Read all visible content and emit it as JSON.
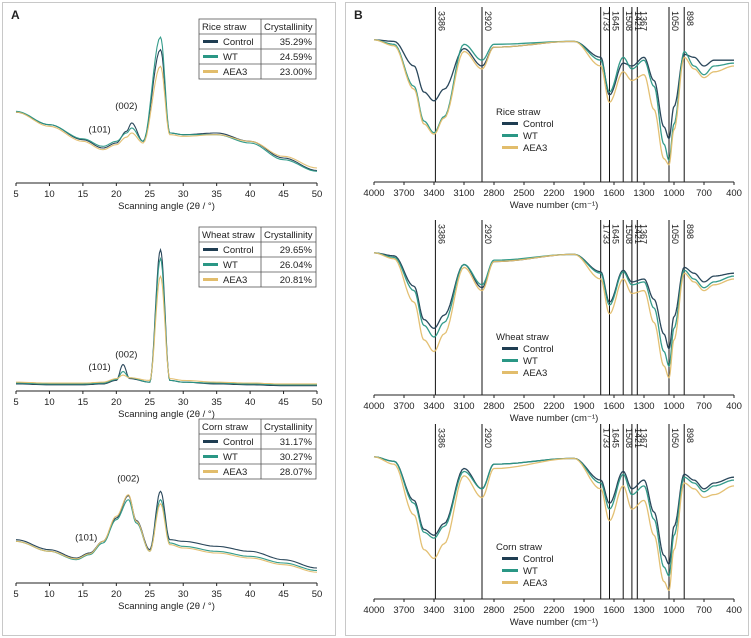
{
  "panels": [
    {
      "letter": "A",
      "type": "xrd"
    },
    {
      "letter": "B",
      "type": "ftir"
    }
  ],
  "colors": {
    "Control": "#1f3d52",
    "WT": "#2a9785",
    "AEA3": "#e2bd6c"
  },
  "xrd": {
    "xlabel": "Scanning angle (2θ / °)",
    "xticks": [
      5,
      10,
      15,
      20,
      25,
      30,
      35,
      40,
      45,
      50
    ],
    "xlim": [
      5,
      50
    ],
    "table_header": "Crystallinity",
    "peak_labels": [
      "(101)",
      "(002)"
    ],
    "charts": [
      {
        "name": "Rice straw",
        "legend": [
          {
            "series": "Control",
            "value": "35.29%"
          },
          {
            "series": "WT",
            "value": "24.59%"
          },
          {
            "series": "AEA3",
            "value": "23.00%"
          }
        ]
      },
      {
        "name": "Wheat straw",
        "legend": [
          {
            "series": "Control",
            "value": "29.65%"
          },
          {
            "series": "WT",
            "value": "26.04%"
          },
          {
            "series": "AEA3",
            "value": "20.81%"
          }
        ]
      },
      {
        "name": "Corn straw",
        "legend": [
          {
            "series": "Control",
            "value": "31.17%"
          },
          {
            "series": "WT",
            "value": "30.27%"
          },
          {
            "series": "AEA3",
            "value": "28.07%"
          }
        ]
      }
    ]
  },
  "ftir": {
    "xlabel": "Wave number (cm⁻¹)",
    "xticks": [
      4000,
      3700,
      3400,
      3100,
      2800,
      2500,
      2200,
      1900,
      1600,
      1300,
      1000,
      700,
      400
    ],
    "xlim": [
      4000,
      400
    ],
    "marker_lines": [
      "3386",
      "2920",
      "1733",
      "1645",
      "1508",
      "1421",
      "1367",
      "1050",
      "898"
    ],
    "charts": [
      {
        "name": "Rice straw",
        "series": [
          "Control",
          "WT",
          "AEA3"
        ]
      },
      {
        "name": "Wheat straw",
        "series": [
          "Control",
          "WT",
          "AEA3"
        ]
      },
      {
        "name": "Corn straw",
        "series": [
          "Control",
          "WT",
          "AEA3"
        ]
      }
    ]
  },
  "chart_data": [
    {
      "type": "line",
      "title": "Rice straw",
      "xlabel": "Scanning angle (2θ / °)",
      "ylabel": "",
      "xlim": [
        5,
        50
      ],
      "series": [
        {
          "name": "Control",
          "x": [
            5,
            10,
            15,
            18,
            20,
            21.5,
            22.3,
            24,
            26.6,
            28,
            30,
            35,
            40,
            45,
            50
          ],
          "y": [
            0.85,
            0.7,
            0.52,
            0.42,
            0.48,
            0.62,
            0.72,
            0.5,
            1.6,
            0.6,
            0.58,
            0.6,
            0.5,
            0.3,
            0.15
          ]
        },
        {
          "name": "WT",
          "x": [
            5,
            10,
            15,
            18,
            20,
            21.5,
            22.3,
            24,
            26.6,
            28,
            30,
            35,
            40,
            45,
            50
          ],
          "y": [
            0.86,
            0.7,
            0.53,
            0.44,
            0.5,
            0.6,
            0.66,
            0.5,
            1.75,
            0.6,
            0.58,
            0.58,
            0.48,
            0.28,
            0.14
          ]
        },
        {
          "name": "AEA3",
          "x": [
            5,
            10,
            15,
            18,
            20,
            21.5,
            22.3,
            24,
            26.6,
            28,
            30,
            35,
            40,
            45,
            50
          ],
          "y": [
            0.85,
            0.68,
            0.5,
            0.4,
            0.46,
            0.55,
            0.6,
            0.48,
            1.4,
            0.58,
            0.56,
            0.58,
            0.5,
            0.32,
            0.18
          ]
        }
      ]
    },
    {
      "type": "line",
      "title": "Wheat straw",
      "xlabel": "Scanning angle (2θ / °)",
      "ylabel": "",
      "xlim": [
        5,
        50
      ],
      "series": [
        {
          "name": "Control",
          "x": [
            5,
            10,
            15,
            18,
            20,
            21,
            22,
            25,
            26.6,
            28,
            30,
            35,
            40,
            45,
            50
          ],
          "y": [
            0.08,
            0.07,
            0.07,
            0.08,
            0.12,
            0.3,
            0.14,
            0.1,
            1.6,
            0.12,
            0.1,
            0.08,
            0.07,
            0.06,
            0.06
          ]
        },
        {
          "name": "WT",
          "x": [
            5,
            10,
            15,
            18,
            20,
            21,
            22,
            25,
            26.6,
            28,
            30,
            35,
            40,
            45,
            50
          ],
          "y": [
            0.09,
            0.08,
            0.08,
            0.09,
            0.13,
            0.22,
            0.15,
            0.1,
            1.5,
            0.12,
            0.1,
            0.09,
            0.08,
            0.07,
            0.07
          ]
        },
        {
          "name": "AEA3",
          "x": [
            5,
            10,
            15,
            18,
            20,
            21,
            22,
            25,
            26.6,
            28,
            30,
            35,
            40,
            45,
            50
          ],
          "y": [
            0.1,
            0.09,
            0.09,
            0.1,
            0.14,
            0.18,
            0.15,
            0.12,
            1.3,
            0.14,
            0.12,
            0.1,
            0.09,
            0.08,
            0.08
          ]
        }
      ]
    },
    {
      "type": "line",
      "title": "Corn straw",
      "xlabel": "Scanning angle (2θ / °)",
      "ylabel": "",
      "xlim": [
        5,
        50
      ],
      "series": [
        {
          "name": "Control",
          "x": [
            5,
            10,
            14,
            16,
            18,
            20,
            21.8,
            23,
            25,
            26.6,
            28,
            30,
            35,
            40,
            45,
            50
          ],
          "y": [
            0.52,
            0.4,
            0.3,
            0.36,
            0.5,
            0.78,
            1.05,
            0.75,
            0.4,
            1.1,
            0.52,
            0.5,
            0.44,
            0.38,
            0.28,
            0.18
          ]
        },
        {
          "name": "WT",
          "x": [
            5,
            10,
            14,
            16,
            18,
            20,
            21.8,
            23,
            25,
            26.6,
            28,
            30,
            35,
            40,
            45,
            50
          ],
          "y": [
            0.5,
            0.38,
            0.28,
            0.34,
            0.48,
            0.76,
            1.0,
            0.72,
            0.38,
            1.0,
            0.48,
            0.44,
            0.38,
            0.32,
            0.24,
            0.15
          ]
        },
        {
          "name": "AEA3",
          "x": [
            5,
            10,
            14,
            16,
            18,
            20,
            21.8,
            23,
            25,
            26.6,
            28,
            30,
            35,
            40,
            45,
            50
          ],
          "y": [
            0.5,
            0.38,
            0.29,
            0.35,
            0.5,
            0.8,
            1.06,
            0.74,
            0.38,
            0.95,
            0.46,
            0.42,
            0.36,
            0.3,
            0.22,
            0.13
          ]
        }
      ]
    },
    {
      "type": "line",
      "title": "Rice straw",
      "xlabel": "Wave number (cm⁻¹)",
      "ylabel": "",
      "xlim": [
        4000,
        400
      ],
      "series": [
        {
          "name": "Control",
          "x": [
            4000,
            3800,
            3600,
            3500,
            3400,
            3300,
            3100,
            2920,
            2800,
            2000,
            1733,
            1645,
            1508,
            1421,
            1300,
            1200,
            1100,
            1050,
            1000,
            898,
            800,
            700,
            600,
            400
          ],
          "y": [
            0.98,
            0.97,
            0.8,
            0.62,
            0.56,
            0.64,
            0.92,
            0.8,
            0.93,
            0.97,
            0.86,
            0.6,
            0.82,
            0.8,
            0.86,
            0.7,
            0.38,
            0.3,
            0.52,
            0.88,
            0.86,
            0.8,
            0.84,
            0.84
          ]
        },
        {
          "name": "WT",
          "x": [
            4000,
            3800,
            3600,
            3500,
            3400,
            3300,
            3100,
            2920,
            2800,
            2000,
            1733,
            1645,
            1508,
            1421,
            1300,
            1200,
            1100,
            1050,
            1000,
            898,
            800,
            700,
            600,
            400
          ],
          "y": [
            0.98,
            0.95,
            0.66,
            0.42,
            0.34,
            0.45,
            0.95,
            0.84,
            0.95,
            0.97,
            0.84,
            0.62,
            0.86,
            0.78,
            0.84,
            0.66,
            0.26,
            0.15,
            0.4,
            0.9,
            0.8,
            0.74,
            0.8,
            0.82
          ]
        },
        {
          "name": "AEA3",
          "x": [
            4000,
            3800,
            3600,
            3500,
            3400,
            3300,
            3100,
            2920,
            2800,
            2000,
            1733,
            1645,
            1508,
            1421,
            1300,
            1200,
            1100,
            1050,
            1000,
            898,
            800,
            700,
            600,
            400
          ],
          "y": [
            0.98,
            0.94,
            0.64,
            0.4,
            0.33,
            0.44,
            0.9,
            0.78,
            0.93,
            0.97,
            0.8,
            0.55,
            0.76,
            0.7,
            0.74,
            0.5,
            0.16,
            0.12,
            0.36,
            0.86,
            0.78,
            0.72,
            0.76,
            0.8
          ]
        }
      ]
    },
    {
      "type": "line",
      "title": "Wheat straw",
      "xlabel": "Wave number (cm⁻¹)",
      "ylabel": "",
      "xlim": [
        4000,
        400
      ],
      "series": [
        {
          "name": "Control",
          "x": [
            4000,
            3800,
            3600,
            3500,
            3400,
            3300,
            3100,
            2920,
            2800,
            2000,
            1733,
            1645,
            1508,
            1421,
            1300,
            1200,
            1100,
            1050,
            1000,
            898,
            800,
            700,
            600,
            400
          ],
          "y": [
            0.98,
            0.96,
            0.75,
            0.52,
            0.46,
            0.55,
            0.9,
            0.74,
            0.92,
            0.97,
            0.85,
            0.64,
            0.86,
            0.78,
            0.8,
            0.66,
            0.42,
            0.32,
            0.54,
            0.88,
            0.84,
            0.78,
            0.82,
            0.84
          ]
        },
        {
          "name": "WT",
          "x": [
            4000,
            3800,
            3600,
            3500,
            3400,
            3300,
            3100,
            2920,
            2800,
            2000,
            1733,
            1645,
            1508,
            1421,
            1300,
            1200,
            1100,
            1050,
            1000,
            898,
            800,
            700,
            600,
            400
          ],
          "y": [
            0.98,
            0.95,
            0.72,
            0.48,
            0.4,
            0.5,
            0.9,
            0.76,
            0.93,
            0.97,
            0.84,
            0.62,
            0.85,
            0.76,
            0.78,
            0.6,
            0.3,
            0.2,
            0.46,
            0.86,
            0.8,
            0.74,
            0.78,
            0.82
          ]
        },
        {
          "name": "AEA3",
          "x": [
            4000,
            3800,
            3600,
            3500,
            3400,
            3300,
            3100,
            2920,
            2800,
            2000,
            1733,
            1645,
            1508,
            1421,
            1300,
            1200,
            1100,
            1050,
            1000,
            898,
            800,
            700,
            600,
            400
          ],
          "y": [
            0.98,
            0.94,
            0.64,
            0.38,
            0.3,
            0.42,
            0.88,
            0.72,
            0.92,
            0.97,
            0.8,
            0.56,
            0.8,
            0.7,
            0.72,
            0.5,
            0.2,
            0.12,
            0.38,
            0.84,
            0.78,
            0.72,
            0.76,
            0.8
          ]
        }
      ]
    },
    {
      "type": "line",
      "title": "Corn straw",
      "xlabel": "Wave number (cm⁻¹)",
      "ylabel": "",
      "xlim": [
        4000,
        400
      ],
      "series": [
        {
          "name": "Control",
          "x": [
            4000,
            3800,
            3600,
            3500,
            3400,
            3300,
            3100,
            2920,
            2800,
            2000,
            1733,
            1645,
            1508,
            1421,
            1300,
            1200,
            1100,
            1050,
            1000,
            898,
            800,
            700,
            600,
            400
          ],
          "y": [
            0.98,
            0.95,
            0.68,
            0.48,
            0.44,
            0.52,
            0.9,
            0.76,
            0.93,
            0.97,
            0.82,
            0.66,
            0.88,
            0.76,
            0.82,
            0.6,
            0.3,
            0.24,
            0.5,
            0.86,
            0.82,
            0.76,
            0.8,
            0.84
          ]
        },
        {
          "name": "WT",
          "x": [
            4000,
            3800,
            3600,
            3500,
            3400,
            3300,
            3100,
            2920,
            2800,
            2000,
            1733,
            1645,
            1508,
            1421,
            1300,
            1200,
            1100,
            1050,
            1000,
            898,
            800,
            700,
            600,
            400
          ],
          "y": [
            0.98,
            0.95,
            0.66,
            0.46,
            0.42,
            0.5,
            0.88,
            0.76,
            0.93,
            0.97,
            0.8,
            0.62,
            0.86,
            0.72,
            0.78,
            0.55,
            0.22,
            0.16,
            0.44,
            0.84,
            0.8,
            0.74,
            0.78,
            0.82
          ]
        },
        {
          "name": "AEA3",
          "x": [
            4000,
            3800,
            3600,
            3500,
            3400,
            3300,
            3100,
            2920,
            2800,
            2000,
            1733,
            1645,
            1508,
            1421,
            1300,
            1200,
            1100,
            1050,
            1000,
            898,
            800,
            700,
            600,
            400
          ],
          "y": [
            0.98,
            0.93,
            0.58,
            0.34,
            0.28,
            0.38,
            0.85,
            0.7,
            0.9,
            0.97,
            0.76,
            0.54,
            0.78,
            0.62,
            0.68,
            0.44,
            0.12,
            0.06,
            0.34,
            0.8,
            0.76,
            0.7,
            0.72,
            0.78
          ]
        }
      ]
    }
  ]
}
